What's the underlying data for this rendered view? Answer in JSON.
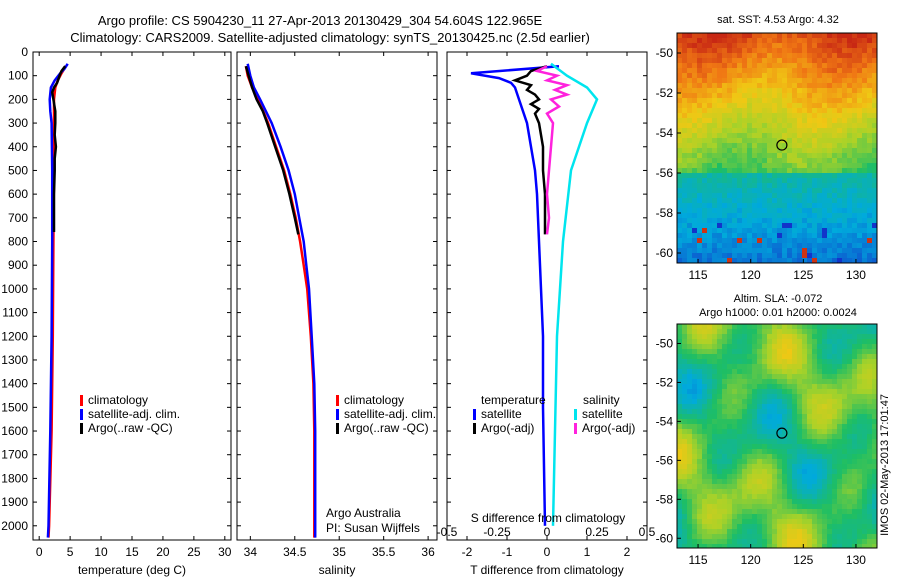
{
  "header": {
    "title_line1": "Argo profile: CS 5904230_11 27-Apr-2013 20130429_304 54.604S 122.965E",
    "title_line2": "Climatology: CARS2009. Satellite-adjusted climatology: synTS_20130425.nc (2.5d earlier)"
  },
  "colors": {
    "climatology": "#ff0000",
    "satellite": "#0000ff",
    "argo": "#000000",
    "salinity_satellite": "#00e5ee",
    "salinity_argo": "#ff22dd"
  },
  "chart_data": [
    {
      "type": "line",
      "panel": "temperature",
      "xlabel": "temperature (deg C)",
      "xlim": [
        -1,
        31
      ],
      "xticks": [
        0,
        5,
        10,
        15,
        20,
        25,
        30
      ],
      "ylim": [
        2060,
        0
      ],
      "yticks": [
        0,
        100,
        200,
        300,
        400,
        500,
        600,
        700,
        800,
        900,
        1000,
        1100,
        1200,
        1300,
        1400,
        1500,
        1600,
        1700,
        1800,
        1900,
        2000
      ],
      "legend": [
        "climatology",
        "satellite-adj. clim.",
        "Argo(..raw -QC)"
      ],
      "series": [
        {
          "name": "climatology",
          "depth": [
            60,
            90,
            120,
            150,
            200,
            300,
            500,
            800,
            1200,
            1600,
            2000,
            2050
          ],
          "values": [
            4.3,
            3.6,
            3.0,
            2.6,
            2.4,
            2.4,
            2.4,
            2.3,
            2.2,
            2.0,
            1.6,
            1.5
          ]
        },
        {
          "name": "satellite-adj. clim.",
          "depth": [
            50,
            70,
            90,
            120,
            150,
            200,
            250,
            300,
            500,
            800,
            1200,
            1600,
            2000,
            2050
          ],
          "values": [
            4.6,
            4.1,
            3.4,
            2.5,
            1.9,
            1.7,
            1.8,
            2.0,
            2.1,
            2.1,
            2.0,
            1.8,
            1.5,
            1.4
          ]
        },
        {
          "name": "Argo(..raw -QC)",
          "depth": [
            60,
            80,
            100,
            130,
            150,
            170,
            200,
            250,
            300,
            350,
            400,
            450,
            500,
            600,
            700,
            760
          ],
          "values": [
            4.2,
            3.6,
            3.3,
            2.9,
            2.4,
            2.1,
            2.3,
            2.6,
            2.6,
            2.5,
            2.7,
            2.5,
            2.5,
            2.4,
            2.4,
            2.4
          ]
        }
      ]
    },
    {
      "type": "line",
      "panel": "salinity",
      "xlabel": "salinity",
      "xlim": [
        33.85,
        36.1
      ],
      "xticks": [
        34,
        34.5,
        35,
        35.5,
        36
      ],
      "ylim": [
        2060,
        0
      ],
      "legend": [
        "climatology",
        "satellite-adj. clim.",
        "Argo(..raw -QC)"
      ],
      "annotation": [
        "Argo Australia",
        "PI: Susan Wijffels"
      ],
      "series": [
        {
          "name": "climatology",
          "depth": [
            60,
            100,
            150,
            200,
            300,
            400,
            500,
            600,
            700,
            800,
            900,
            1000,
            1200,
            1400,
            1600,
            2000,
            2050
          ],
          "values": [
            33.95,
            33.97,
            34.02,
            34.09,
            34.2,
            34.29,
            34.38,
            34.45,
            34.51,
            34.56,
            34.6,
            34.64,
            34.68,
            34.71,
            34.72,
            34.72,
            34.72
          ]
        },
        {
          "name": "satellite-adj. clim.",
          "depth": [
            50,
            100,
            150,
            200,
            300,
            400,
            500,
            600,
            700,
            800,
            900,
            1000,
            1200,
            1400,
            1600,
            2000,
            2050
          ],
          "values": [
            33.97,
            34.0,
            34.04,
            34.11,
            34.24,
            34.34,
            34.43,
            34.5,
            34.55,
            34.6,
            34.63,
            34.66,
            34.69,
            34.72,
            34.73,
            34.73,
            34.73
          ]
        },
        {
          "name": "Argo(..raw -QC)",
          "depth": [
            60,
            100,
            150,
            200,
            250,
            300,
            400,
            500,
            600,
            700,
            770
          ],
          "values": [
            33.95,
            33.98,
            34.02,
            34.07,
            34.14,
            34.19,
            34.28,
            34.37,
            34.44,
            34.5,
            34.54
          ]
        }
      ]
    },
    {
      "type": "line",
      "panel": "differences",
      "xlabel": "T difference from climatology",
      "xlabel_top": "S difference from climatology",
      "xlim": [
        -2.5,
        2.5
      ],
      "xticks": [
        -2,
        -1,
        0,
        1,
        2
      ],
      "xticks_top": [
        -0.5,
        -0.25,
        0,
        0.25,
        0.5
      ],
      "xticks_top_labels": [
        "-0.5",
        "-0.25",
        "0",
        "0.25",
        "0.5"
      ],
      "ylim": [
        2060,
        0
      ],
      "legend_temperature": {
        "heading": "temperature",
        "items": [
          "satellite",
          "Argo(-adj)"
        ]
      },
      "legend_salinity": {
        "heading": "salinity",
        "items": [
          "satellite",
          "Argo(-adj)"
        ]
      },
      "series": [
        {
          "name": "temperature satellite",
          "depth": [
            60,
            90,
            110,
            130,
            150,
            200,
            300,
            400,
            500,
            600,
            800,
            1000,
            1200,
            1500,
            2000
          ],
          "values": [
            0.3,
            -1.9,
            -1.2,
            -0.9,
            -0.8,
            -0.7,
            -0.5,
            -0.4,
            -0.3,
            -0.25,
            -0.2,
            -0.15,
            -0.1,
            -0.1,
            -0.05
          ]
        },
        {
          "name": "temperature Argo(-adj)",
          "depth": [
            60,
            80,
            100,
            120,
            140,
            160,
            180,
            200,
            220,
            240,
            260,
            300,
            350,
            400,
            500,
            600,
            700,
            770
          ],
          "values": [
            0.0,
            -0.4,
            -0.5,
            -0.8,
            -0.4,
            -0.5,
            -0.3,
            -0.2,
            -0.4,
            -0.2,
            -0.3,
            -0.2,
            -0.15,
            -0.1,
            -0.1,
            -0.05,
            -0.05,
            -0.05
          ]
        },
        {
          "name": "salinity satellite",
          "depth": [
            50,
            100,
            150,
            200,
            300,
            500,
            800,
            1200,
            1600,
            2000
          ],
          "values": [
            0.02,
            0.1,
            0.2,
            0.25,
            0.2,
            0.12,
            0.08,
            0.05,
            0.04,
            0.03
          ]
        },
        {
          "name": "salinity Argo(-adj)",
          "depth": [
            60,
            80,
            100,
            120,
            140,
            160,
            180,
            200,
            230,
            260,
            300,
            400,
            500,
            600,
            700,
            770
          ],
          "values": [
            0.0,
            -0.05,
            0.05,
            0.0,
            0.1,
            0.04,
            0.1,
            0.02,
            0.06,
            0.0,
            0.03,
            0.02,
            0.01,
            0.0,
            0.01,
            0.0
          ]
        }
      ]
    },
    {
      "type": "heatmap",
      "panel": "sst-map",
      "title": "sat. SST: 4.53 Argo: 4.32",
      "xticks": [
        115,
        120,
        125,
        130
      ],
      "yticks": [
        -50,
        -52,
        -54,
        -56,
        -58,
        -60
      ],
      "xlim": [
        113,
        132
      ],
      "ylim": [
        -60.5,
        -49
      ],
      "marker": {
        "lon": 122.965,
        "lat": -54.604
      }
    },
    {
      "type": "heatmap",
      "panel": "sla-map",
      "title_line1": "Altim. SLA: -0.072",
      "title_line2": "Argo h1000: 0.01 h2000: 0.0024",
      "xticks": [
        115,
        120,
        125,
        130
      ],
      "yticks": [
        -50,
        -52,
        -54,
        -56,
        -58,
        -60
      ],
      "xlim": [
        113,
        132
      ],
      "ylim": [
        -60.5,
        -49
      ],
      "marker": {
        "lon": 122.965,
        "lat": -54.604
      }
    }
  ],
  "side_stamp": "IMOS 02-May-2013 17:01:47"
}
